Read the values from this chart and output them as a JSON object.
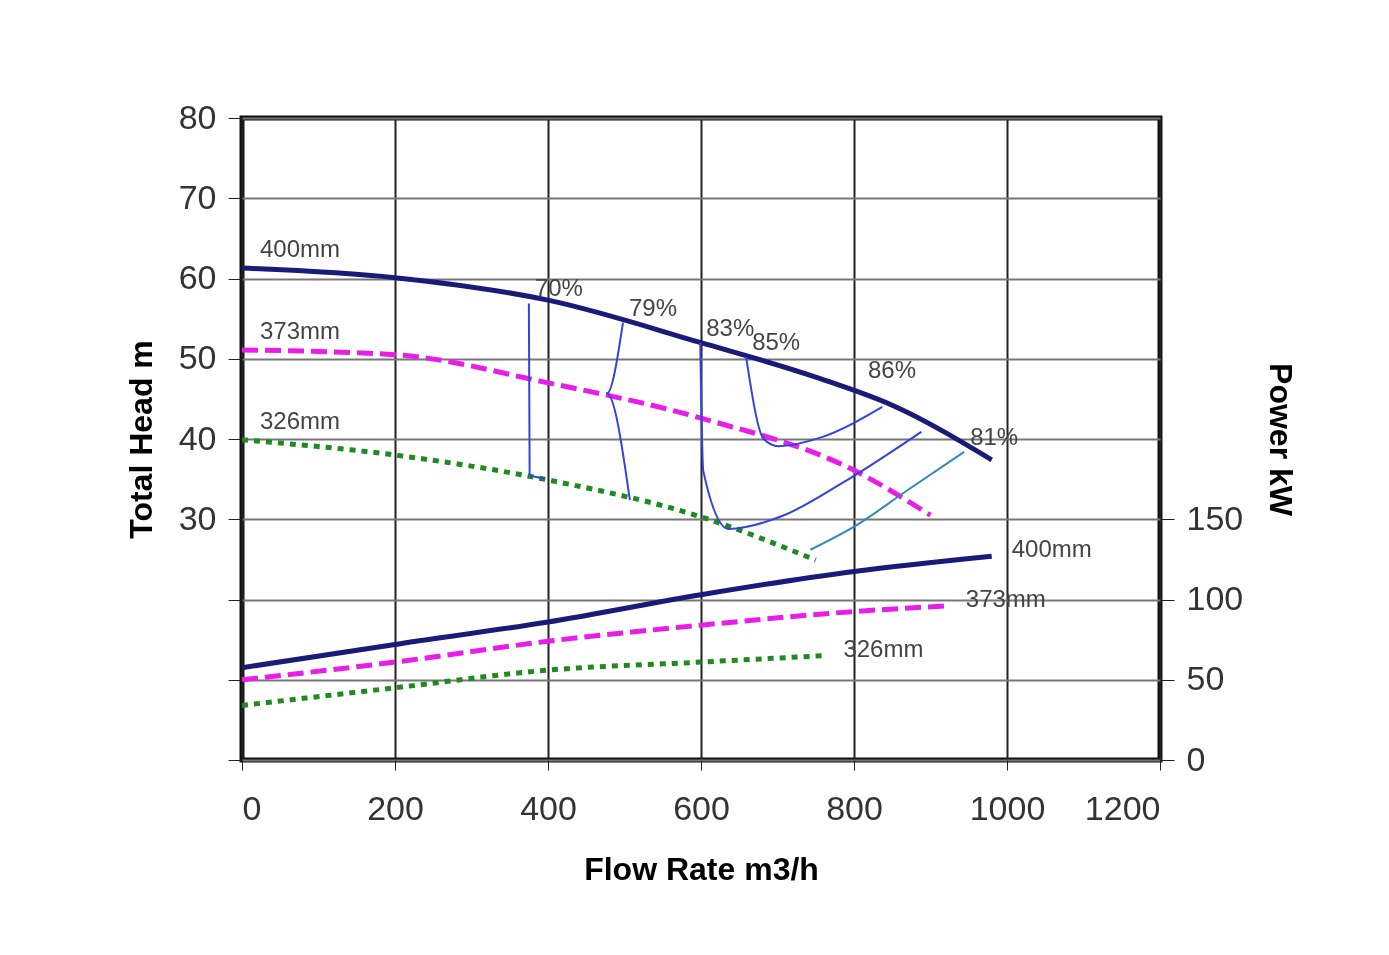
{
  "chart_data": {
    "type": "line",
    "xlabel": "Flow Rate m3/h",
    "ylabel": "Total Head m",
    "y2label": "Power kW",
    "xlim": [
      0,
      1200
    ],
    "xticks": [
      0,
      200,
      400,
      600,
      800,
      1000,
      1200
    ],
    "ylim": [
      0,
      80
    ],
    "yticks": [
      {
        "value": 0,
        "label": null
      },
      {
        "value": 10,
        "label": null
      },
      {
        "value": 20,
        "label": null
      },
      30,
      40,
      50,
      60,
      70,
      80
    ],
    "y2lim": [
      0,
      400
    ],
    "y2ticks": [
      0,
      50,
      100,
      150
    ],
    "grid": true,
    "marker": "none",
    "series": [
      {
        "name": "400mm",
        "color": "#1a1a78",
        "line_style": "solid",
        "x": [
          0,
          200,
          400,
          600,
          750,
          850,
          980
        ],
        "values": [
          61.3,
          60.1,
          57.3,
          52,
          47.7,
          44.2,
          37.4
        ]
      },
      {
        "name": "373mm",
        "color": "#e81ee8",
        "line_style": "dashed",
        "x": [
          0,
          200,
          400,
          600,
          800,
          900
        ],
        "values": [
          51.1,
          50.5,
          47,
          42.6,
          36.1,
          30.5
        ]
      },
      {
        "name": "326mm",
        "color": "#1f8a1f",
        "line_style": "dotted",
        "x": [
          0,
          200,
          400,
          600,
          750
        ],
        "values": [
          39.9,
          38,
          34.9,
          30.3,
          24.9
        ]
      },
      {
        "name": "70%",
        "color": "#3344dd",
        "line_style": "solid",
        "x": [
          375,
          376,
          396
        ],
        "values": [
          56.9,
          35.5,
          35.1
        ]
      },
      {
        "name": "79%",
        "color": "#3344dd",
        "line_style": "solid",
        "x": [
          498,
          477,
          507
        ],
        "values": [
          54.5,
          45.7,
          32.4
        ]
      },
      {
        "name": "83%",
        "color": "#3344dd",
        "line_style": "solid",
        "x": [
          599,
          603,
          636,
          706,
          786,
          888
        ],
        "values": [
          52,
          36,
          28.8,
          30.4,
          34.6,
          40.9
        ]
      },
      {
        "name": "85%",
        "color": "#3344dd",
        "line_style": "solid",
        "x": [
          659,
          682,
          701,
          757,
          837
        ],
        "values": [
          50.2,
          40,
          39.1,
          40.2,
          44
        ]
      },
      {
        "name": "81%",
        "color": "#3388bb",
        "line_style": "solid",
        "x": [
          944,
          865,
          804,
          743
        ],
        "values": [
          38.4,
          33.3,
          29.3,
          26.2
        ]
      },
      {
        "name": "400mm",
        "color": "#1a1a78",
        "line_style": "solid",
        "axis": "y2",
        "x": [
          0,
          200,
          400,
          600,
          800,
          980
        ],
        "values": [
          57.5,
          72,
          86,
          103,
          117.5,
          127
        ]
      },
      {
        "name": "373mm",
        "color": "#e81ee8",
        "line_style": "dashed",
        "axis": "y2",
        "x": [
          0,
          200,
          400,
          600,
          800,
          920
        ],
        "values": [
          50,
          61,
          74,
          84,
          92.5,
          96
        ]
      },
      {
        "name": "326mm",
        "color": "#1f8a1f",
        "line_style": "dotted",
        "axis": "y2",
        "x": [
          0,
          200,
          400,
          600,
          760
        ],
        "values": [
          34,
          45,
          56,
          61,
          65
        ]
      }
    ],
    "annotations": [
      {
        "text": "86%",
        "x": 800,
        "y": 46
      }
    ]
  }
}
